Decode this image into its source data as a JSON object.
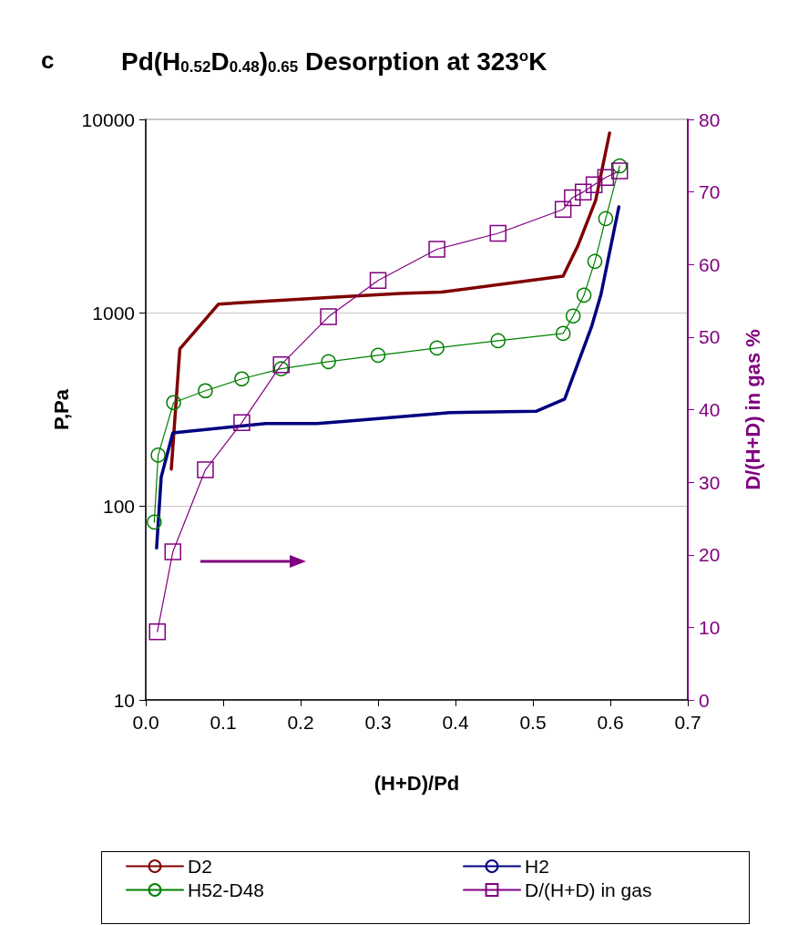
{
  "chart_data": {
    "type": "line",
    "title": "Pd(H$_{0.52}$D$_{0.48}$)$_{0.65}$ Desorption at 323$^{o}$K",
    "xlabel": "(H+D)/Pd",
    "ylabel": "P,Pa",
    "y2label": "D/(H+D) in gas %",
    "annotations": [
      "c"
    ],
    "log": "y",
    "grid": "y",
    "legend": "bottom",
    "xlim": [
      0,
      0.7
    ],
    "xticks": [
      {
        "value": 0,
        "label": "0.0"
      },
      0.1,
      0.2,
      0.3,
      0.4,
      0.5,
      0.6,
      0.7
    ],
    "ylim": [
      10,
      10000
    ],
    "yticks": [
      10,
      100,
      1000,
      10000
    ],
    "y2lim": [
      0,
      80
    ],
    "y2ticks": [
      0,
      10,
      20,
      30,
      40,
      50,
      60,
      70,
      80
    ],
    "series": [
      {
        "name": "D2",
        "color": "#800000",
        "marker": "none",
        "x": [
          0.033,
          0.044,
          0.094,
          0.235,
          0.329,
          0.382,
          0.539,
          0.558,
          0.581,
          0.599
        ],
        "values": [
          156,
          652,
          1110,
          1200,
          1260,
          1280,
          1550,
          2220,
          3810,
          8500
        ]
      },
      {
        "name": "H2",
        "color": "#000080",
        "marker": "none",
        "x": [
          0.014,
          0.02,
          0.035,
          0.155,
          0.221,
          0.255,
          0.393,
          0.504,
          0.541,
          0.576,
          0.588,
          0.611
        ],
        "values": [
          61,
          142,
          240,
          268,
          268,
          275,
          305,
          310,
          359,
          855,
          1250,
          3530
        ]
      },
      {
        "name": "H52-D48",
        "color": "#008000",
        "marker": "circle",
        "x": [
          0.011,
          0.016,
          0.036,
          0.077,
          0.124,
          0.175,
          0.236,
          0.3,
          0.376,
          0.455,
          0.539,
          0.552,
          0.566,
          0.58,
          0.594,
          0.612
        ],
        "values": [
          83,
          184,
          344,
          396,
          456,
          514,
          560,
          604,
          659,
          718,
          783,
          964,
          1236,
          1845,
          3070,
          5750
        ]
      },
      {
        "name": "D/(H+D) in gas",
        "color": "#800080",
        "marker": "square",
        "axis": "y2",
        "x": [
          0.015,
          0.035,
          0.077,
          0.124,
          0.175,
          0.236,
          0.3,
          0.376,
          0.455,
          0.539,
          0.551,
          0.565,
          0.579,
          0.594,
          0.612
        ],
        "values": [
          9.4,
          20.4,
          31.7,
          38.2,
          46.2,
          52.8,
          57.8,
          62.1,
          64.3,
          67.6,
          69.2,
          70,
          71,
          72,
          72.9
        ]
      }
    ]
  }
}
